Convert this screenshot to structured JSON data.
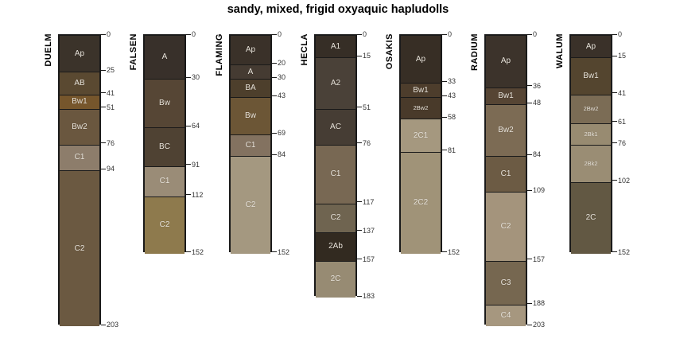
{
  "title": "sandy, mixed, frigid oxyaquic hapludolls",
  "colors": {
    "background": "#ffffff",
    "bar_border": "#1a1a1a",
    "horizon_label_text": "#e8e3da",
    "depth_label_text": "#333333",
    "series_label_text": "#000000",
    "title_text": "#000000"
  },
  "chart_data": {
    "type": "bar",
    "subtype": "soil-profile-depth-columns",
    "title": "sandy, mixed, frigid oxyaquic hapludolls",
    "xlabel": "",
    "ylabel": "",
    "depth_range": [
      0,
      203
    ],
    "grid": false,
    "legend": false,
    "series": [
      {
        "name": "DUELM",
        "horizons": [
          {
            "label": "Ap",
            "top": 0,
            "bottom": 25,
            "color": "#3b332a"
          },
          {
            "label": "AB",
            "top": 25,
            "bottom": 41,
            "color": "#5a4931"
          },
          {
            "label": "Bw1",
            "top": 41,
            "bottom": 51,
            "color": "#76562c"
          },
          {
            "label": "Bw2",
            "top": 51,
            "bottom": 76,
            "color": "#6a573f"
          },
          {
            "label": "C1",
            "top": 76,
            "bottom": 94,
            "color": "#8d7d6b"
          },
          {
            "label": "C2",
            "top": 94,
            "bottom": 203,
            "color": "#6b5941"
          }
        ]
      },
      {
        "name": "FALSEN",
        "horizons": [
          {
            "label": "A",
            "top": 0,
            "bottom": 30,
            "color": "#38302a"
          },
          {
            "label": "Bw",
            "top": 30,
            "bottom": 64,
            "color": "#564635"
          },
          {
            "label": "BC",
            "top": 64,
            "bottom": 91,
            "color": "#4f4233"
          },
          {
            "label": "C1",
            "top": 91,
            "bottom": 112,
            "color": "#9a8c77"
          },
          {
            "label": "C2",
            "top": 112,
            "bottom": 152,
            "color": "#8e7a4d"
          }
        ]
      },
      {
        "name": "FLAMING",
        "horizons": [
          {
            "label": "Ap",
            "top": 0,
            "bottom": 20,
            "color": "#3a3129"
          },
          {
            "label": "A",
            "top": 20,
            "bottom": 30,
            "color": "#453b32"
          },
          {
            "label": "BA",
            "top": 30,
            "bottom": 43,
            "color": "#4d3f2c"
          },
          {
            "label": "Bw",
            "top": 43,
            "bottom": 69,
            "color": "#6c5636"
          },
          {
            "label": "C1",
            "top": 69,
            "bottom": 84,
            "color": "#837260"
          },
          {
            "label": "C2",
            "top": 84,
            "bottom": 152,
            "color": "#a49880"
          }
        ]
      },
      {
        "name": "HECLA",
        "horizons": [
          {
            "label": "A1",
            "top": 0,
            "bottom": 15,
            "color": "#362e26"
          },
          {
            "label": "A2",
            "top": 15,
            "bottom": 51,
            "color": "#4a4138"
          },
          {
            "label": "AC",
            "top": 51,
            "bottom": 76,
            "color": "#463d34"
          },
          {
            "label": "C1",
            "top": 76,
            "bottom": 117,
            "color": "#786853"
          },
          {
            "label": "C2",
            "top": 117,
            "bottom": 137,
            "color": "#6f6450"
          },
          {
            "label": "2Ab",
            "top": 137,
            "bottom": 157,
            "color": "#322a20"
          },
          {
            "label": "2C",
            "top": 157,
            "bottom": 183,
            "color": "#978b73"
          }
        ]
      },
      {
        "name": "OSAKIS",
        "horizons": [
          {
            "label": "Ap",
            "top": 0,
            "bottom": 33,
            "color": "#372e25"
          },
          {
            "label": "Bw1",
            "top": 33,
            "bottom": 43,
            "color": "#4d3d2c"
          },
          {
            "label": "2Bw2",
            "top": 43,
            "bottom": 58,
            "color": "#493a2a"
          },
          {
            "label": "2C1",
            "top": 58,
            "bottom": 81,
            "color": "#a5987f"
          },
          {
            "label": "2C2",
            "top": 81,
            "bottom": 152,
            "color": "#a09378"
          }
        ]
      },
      {
        "name": "RADIUM",
        "horizons": [
          {
            "label": "Ap",
            "top": 0,
            "bottom": 36,
            "color": "#3c332b"
          },
          {
            "label": "Bw1",
            "top": 36,
            "bottom": 48,
            "color": "#564534"
          },
          {
            "label": "Bw2",
            "top": 48,
            "bottom": 84,
            "color": "#7c6b54"
          },
          {
            "label": "C1",
            "top": 84,
            "bottom": 109,
            "color": "#6c5b44"
          },
          {
            "label": "C2",
            "top": 109,
            "bottom": 157,
            "color": "#a4947c"
          },
          {
            "label": "C3",
            "top": 157,
            "bottom": 188,
            "color": "#766750"
          },
          {
            "label": "C4",
            "top": 188,
            "bottom": 203,
            "color": "#a6977f"
          }
        ]
      },
      {
        "name": "WALUM",
        "horizons": [
          {
            "label": "Ap",
            "top": 0,
            "bottom": 15,
            "color": "#3a3129"
          },
          {
            "label": "Bw1",
            "top": 15,
            "bottom": 41,
            "color": "#54452f"
          },
          {
            "label": "2Bw2",
            "top": 41,
            "bottom": 61,
            "color": "#7b6c55"
          },
          {
            "label": "2Bk1",
            "top": 61,
            "bottom": 76,
            "color": "#988b71"
          },
          {
            "label": "2Bk2",
            "top": 76,
            "bottom": 102,
            "color": "#9a8d74"
          },
          {
            "label": "2C",
            "top": 102,
            "bottom": 152,
            "color": "#625843"
          }
        ]
      }
    ]
  }
}
